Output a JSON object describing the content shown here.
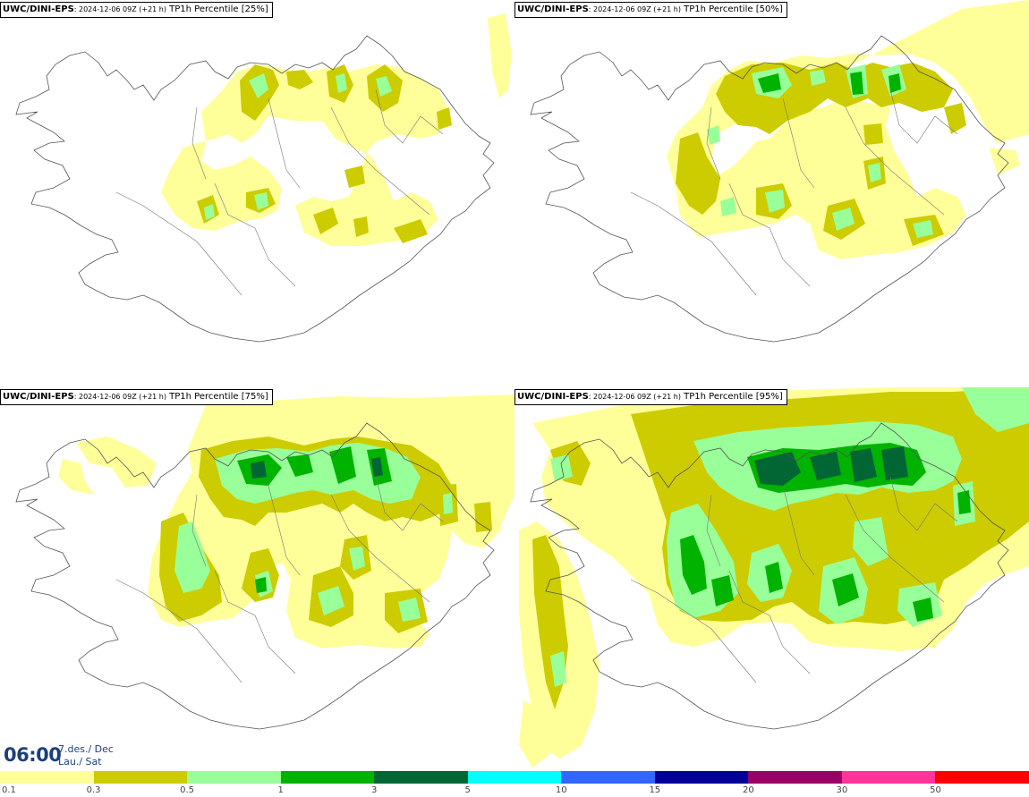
{
  "panels": [
    {
      "model": "UWC/DINI-EPS",
      "run": ": 2024-12-06 09Z (+21 h)",
      "field": " TP1h Percentile [25%]",
      "percentile": 25
    },
    {
      "model": "UWC/DINI-EPS",
      "run": ": 2024-12-06 09Z (+21 h)",
      "field": " TP1h Percentile [50%]",
      "percentile": 50
    },
    {
      "model": "UWC/DINI-EPS",
      "run": ": 2024-12-06 09Z (+21 h)",
      "field": " TP1h Percentile [75%]",
      "percentile": 75
    },
    {
      "model": "UWC/DINI-EPS",
      "run": ": 2024-12-06 09Z (+21 h)",
      "field": " TP1h Percentile [95%]",
      "percentile": 95
    }
  ],
  "valid_time": {
    "time": "06:00",
    "date": "7.des./ Dec",
    "weekday": "Lau./ Sat"
  },
  "colorbar": {
    "colors": [
      "#ffff99",
      "#cccc00",
      "#99ff99",
      "#00b300",
      "#006633",
      "#00ffff",
      "#3366ff",
      "#000099",
      "#990066",
      "#ff3399",
      "#ff0000"
    ],
    "labels": [
      "0.1",
      "0.3",
      "0.5",
      "1",
      "3",
      "5",
      "10",
      "15",
      "20",
      "30",
      "50"
    ]
  }
}
